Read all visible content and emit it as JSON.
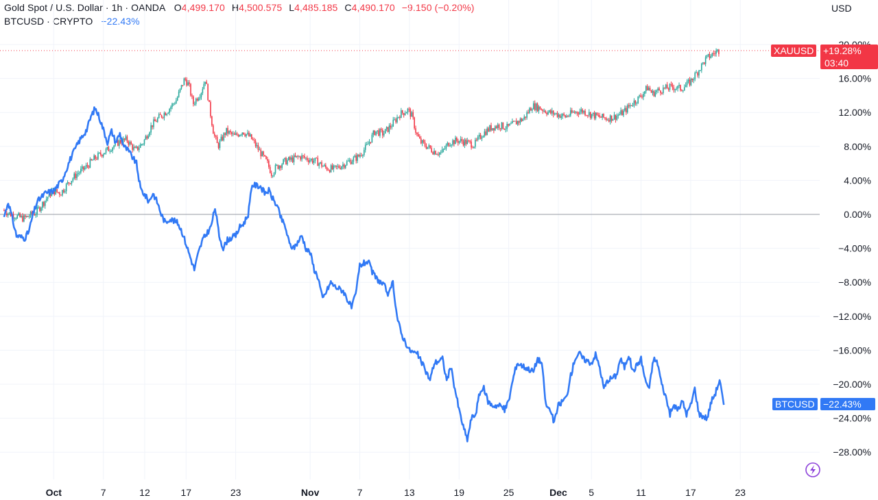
{
  "legend": {
    "gold_title": "Gold Spot / U.S. Dollar · 1h · OANDA",
    "open_key": "O",
    "open": "4,499.170",
    "high_key": "H",
    "high": "4,500.575",
    "low_key": "L",
    "low": "4,485.185",
    "close_key": "C",
    "close": "4,490.170",
    "change": "−9.150 (−0.20%)",
    "btc_title": "BTCUSD · CRYPTO",
    "btc_change": "−22.43%"
  },
  "currency": "USD",
  "tags": {
    "xau_symbol": "XAUUSD",
    "xau_value": "+19.28%",
    "xau_countdown": "03:40",
    "btc_symbol": "BTCUSD",
    "btc_value": "−22.43%"
  },
  "colors": {
    "up": "#26a69a",
    "down": "#f23645",
    "btc_line": "#3179f5",
    "zero_line": "#9598a1",
    "grid": "#f0f3fa"
  },
  "icons": {
    "bottom_right": "lightning-icon"
  },
  "chart_data": {
    "type": "line",
    "ylabel": "",
    "xlabel": "",
    "y_unit": "percent change",
    "ylim": [
      -31,
      21
    ],
    "y_ticks": [
      20,
      16,
      12,
      8,
      4,
      0,
      -4,
      -8,
      -12,
      -16,
      -20,
      -24,
      -28
    ],
    "y_tick_labels": [
      "20.00%",
      "16.00%",
      "12.00%",
      "8.00%",
      "4.00%",
      "0.00%",
      "−4.00%",
      "−8.00%",
      "−12.00%",
      "−16.00%",
      "−20.00%",
      "−24.00%",
      "−28.00%"
    ],
    "x_unit": "day index from 0 = Sep 26",
    "x_ticks": [
      {
        "label": "Oct",
        "day": 5,
        "bold": true
      },
      {
        "label": "7",
        "day": 11
      },
      {
        "label": "12",
        "day": 16
      },
      {
        "label": "17",
        "day": 21
      },
      {
        "label": "23",
        "day": 27
      },
      {
        "label": "Nov",
        "day": 36,
        "bold": true
      },
      {
        "label": "7",
        "day": 42
      },
      {
        "label": "13",
        "day": 48
      },
      {
        "label": "19",
        "day": 54
      },
      {
        "label": "25",
        "day": 60
      },
      {
        "label": "Dec",
        "day": 66,
        "bold": true
      },
      {
        "label": "5",
        "day": 70
      },
      {
        "label": "11",
        "day": 76
      },
      {
        "label": "17",
        "day": 82
      },
      {
        "label": "23",
        "day": 88
      }
    ],
    "series": [
      {
        "name": "XAUUSD",
        "style": "candles",
        "points": [
          [
            -1,
            0.5
          ],
          [
            0,
            0
          ],
          [
            1.5,
            -0.5
          ],
          [
            3,
            0.2
          ],
          [
            4,
            1.5
          ],
          [
            5,
            2.8
          ],
          [
            6,
            2.5
          ],
          [
            7,
            3.8
          ],
          [
            8,
            4.8
          ],
          [
            9,
            5.5
          ],
          [
            10,
            6.5
          ],
          [
            11,
            7.2
          ],
          [
            12,
            7.8
          ],
          [
            13,
            8.5
          ],
          [
            14,
            8.8
          ],
          [
            15,
            7.5
          ],
          [
            16,
            8.5
          ],
          [
            17,
            10.5
          ],
          [
            18,
            11.5
          ],
          [
            19,
            12.3
          ],
          [
            20,
            13.5
          ],
          [
            21,
            16.0
          ],
          [
            21.5,
            15.2
          ],
          [
            22,
            13.0
          ],
          [
            23,
            14.5
          ],
          [
            23.5,
            16.0
          ],
          [
            24,
            12.5
          ],
          [
            24.5,
            9.5
          ],
          [
            25,
            8.0
          ],
          [
            26,
            9.8
          ],
          [
            27,
            9.2
          ],
          [
            28,
            9.8
          ],
          [
            29,
            9.0
          ],
          [
            30,
            7.5
          ],
          [
            31,
            6.0
          ],
          [
            31.5,
            4.8
          ],
          [
            32,
            5.5
          ],
          [
            33,
            6.2
          ],
          [
            34,
            6.5
          ],
          [
            35,
            6.8
          ],
          [
            36,
            6.5
          ],
          [
            37,
            6.2
          ],
          [
            38,
            5.5
          ],
          [
            39,
            5.3
          ],
          [
            40,
            5.8
          ],
          [
            41,
            6.3
          ],
          [
            42,
            6.8
          ],
          [
            43,
            8.0
          ],
          [
            44,
            9.8
          ],
          [
            45,
            9.5
          ],
          [
            46,
            10.5
          ],
          [
            47,
            11.8
          ],
          [
            48,
            12.3
          ],
          [
            48.5,
            11.5
          ],
          [
            49,
            9.5
          ],
          [
            49.5,
            8.5
          ],
          [
            50,
            8.2
          ],
          [
            51,
            7.5
          ],
          [
            52,
            7.2
          ],
          [
            53,
            8.5
          ],
          [
            54,
            8.7
          ],
          [
            55,
            8.5
          ],
          [
            56,
            8.2
          ],
          [
            57,
            9.5
          ],
          [
            58,
            10.2
          ],
          [
            59,
            10.5
          ],
          [
            60,
            10.2
          ],
          [
            61,
            10.8
          ],
          [
            62,
            11.3
          ],
          [
            63,
            12.8
          ],
          [
            64,
            12.5
          ],
          [
            65,
            12.0
          ],
          [
            66,
            11.8
          ],
          [
            67,
            11.5
          ],
          [
            68,
            12.0
          ],
          [
            69,
            12.2
          ],
          [
            70,
            11.8
          ],
          [
            71,
            11.5
          ],
          [
            72,
            11.3
          ],
          [
            73,
            11.5
          ],
          [
            74,
            12.0
          ],
          [
            75,
            13.0
          ],
          [
            76,
            13.8
          ],
          [
            77,
            15.0
          ],
          [
            77.5,
            14.2
          ],
          [
            78,
            14.5
          ],
          [
            79,
            14.8
          ],
          [
            80,
            15.0
          ],
          [
            81,
            14.8
          ],
          [
            82,
            15.5
          ],
          [
            83,
            16.8
          ],
          [
            84,
            18.3
          ],
          [
            85,
            19.0
          ],
          [
            85.5,
            19.28
          ]
        ]
      },
      {
        "name": "BTCUSD",
        "style": "line",
        "points": [
          [
            -1,
            -0.3
          ],
          [
            -0.5,
            1.5
          ],
          [
            0,
            -0.5
          ],
          [
            0.5,
            -2.5
          ],
          [
            1.5,
            -2.8
          ],
          [
            2,
            -2.0
          ],
          [
            2.5,
            0
          ],
          [
            3,
            1.5
          ],
          [
            4,
            2.5
          ],
          [
            5,
            2.8
          ],
          [
            6,
            4.0
          ],
          [
            7,
            6.5
          ],
          [
            8,
            8.5
          ],
          [
            9,
            10.0
          ],
          [
            9.5,
            11.5
          ],
          [
            10,
            12.5
          ],
          [
            10.5,
            11.5
          ],
          [
            11,
            10.0
          ],
          [
            11.5,
            8.5
          ],
          [
            12,
            9.8
          ],
          [
            12.5,
            8.5
          ],
          [
            13,
            9.5
          ],
          [
            13.5,
            8.0
          ],
          [
            14,
            7.5
          ],
          [
            15,
            6.0
          ],
          [
            15.5,
            3.0
          ],
          [
            16,
            2.3
          ],
          [
            16.5,
            1.5
          ],
          [
            17,
            2.5
          ],
          [
            17.5,
            1.5
          ],
          [
            18,
            0
          ],
          [
            18.5,
            -1.0
          ],
          [
            19,
            -0.5
          ],
          [
            20,
            -1.0
          ],
          [
            20.5,
            -2.0
          ],
          [
            21,
            -3.5
          ],
          [
            21.5,
            -5.0
          ],
          [
            22,
            -6.5
          ],
          [
            22.5,
            -4.5
          ],
          [
            23,
            -3.0
          ],
          [
            24,
            -1.5
          ],
          [
            24.5,
            0.8
          ],
          [
            25,
            -2.5
          ],
          [
            25.5,
            -4.0
          ],
          [
            26,
            -3.0
          ],
          [
            27,
            -2.5
          ],
          [
            27.5,
            -1.5
          ],
          [
            28,
            -1.0
          ],
          [
            28.5,
            0
          ],
          [
            29,
            3.5
          ],
          [
            30,
            3.3
          ],
          [
            30.5,
            2.5
          ],
          [
            31,
            2.8
          ],
          [
            31.5,
            1.8
          ],
          [
            32,
            1.0
          ],
          [
            32.5,
            -0.5
          ],
          [
            33,
            -1.5
          ],
          [
            33.5,
            -3.5
          ],
          [
            34,
            -4.0
          ],
          [
            35,
            -2.5
          ],
          [
            35.5,
            -4.0
          ],
          [
            36,
            -4.5
          ],
          [
            36.5,
            -6.5
          ],
          [
            37,
            -7.5
          ],
          [
            37.5,
            -10.0
          ],
          [
            38,
            -9.0
          ],
          [
            38.5,
            -8.0
          ],
          [
            39,
            -8.5
          ],
          [
            40,
            -9.0
          ],
          [
            40.5,
            -10.0
          ],
          [
            41,
            -11.0
          ],
          [
            41.5,
            -9.5
          ],
          [
            42,
            -6.0
          ],
          [
            43,
            -5.5
          ],
          [
            43.5,
            -6.8
          ],
          [
            44,
            -7.5
          ],
          [
            44.5,
            -8.0
          ],
          [
            45,
            -8.5
          ],
          [
            45.5,
            -9.5
          ],
          [
            46,
            -8.0
          ],
          [
            46.5,
            -12.0
          ],
          [
            47,
            -14.0
          ],
          [
            47.5,
            -15.0
          ],
          [
            48,
            -16.0
          ],
          [
            49,
            -16.5
          ],
          [
            50,
            -18.5
          ],
          [
            50.5,
            -19.5
          ],
          [
            51,
            -17.5
          ],
          [
            52,
            -17.0
          ],
          [
            52.5,
            -19.5
          ],
          [
            53,
            -18.0
          ],
          [
            53.5,
            -20.5
          ],
          [
            54,
            -23.0
          ],
          [
            54.5,
            -25.0
          ],
          [
            55,
            -26.5
          ],
          [
            55.5,
            -24.0
          ],
          [
            56,
            -23.5
          ],
          [
            56.5,
            -21.0
          ],
          [
            57,
            -20.5
          ],
          [
            57.5,
            -22.0
          ],
          [
            58,
            -22.5
          ],
          [
            59,
            -22.5
          ],
          [
            59.5,
            -23.0
          ],
          [
            60,
            -22.0
          ],
          [
            60.5,
            -19.5
          ],
          [
            61,
            -17.5
          ],
          [
            62,
            -18.0
          ],
          [
            63,
            -18.5
          ],
          [
            63.5,
            -17.0
          ],
          [
            64,
            -17.5
          ],
          [
            64.5,
            -22.5
          ],
          [
            65,
            -23.0
          ],
          [
            65.5,
            -24.5
          ],
          [
            66,
            -22.5
          ],
          [
            66.5,
            -22.0
          ],
          [
            67,
            -21.5
          ],
          [
            67.5,
            -19.0
          ],
          [
            68,
            -17.0
          ],
          [
            68.5,
            -16.3
          ],
          [
            69,
            -17.0
          ],
          [
            70,
            -17.5
          ],
          [
            70.5,
            -16.5
          ],
          [
            71,
            -18.0
          ],
          [
            71.5,
            -20.5
          ],
          [
            72,
            -19.5
          ],
          [
            73,
            -19.0
          ],
          [
            73.5,
            -17.0
          ],
          [
            74,
            -18.0
          ],
          [
            74.5,
            -16.5
          ],
          [
            75,
            -18.5
          ],
          [
            76,
            -17.0
          ],
          [
            76.5,
            -19.5
          ],
          [
            77,
            -20.5
          ],
          [
            77.5,
            -17.0
          ],
          [
            78,
            -17.5
          ],
          [
            78.5,
            -20.0
          ],
          [
            79,
            -21.5
          ],
          [
            79.5,
            -23.5
          ],
          [
            80,
            -22.5
          ],
          [
            80.5,
            -23.0
          ],
          [
            81,
            -22.0
          ],
          [
            81.5,
            -23.5
          ],
          [
            82,
            -22.5
          ],
          [
            82.5,
            -20.5
          ],
          [
            83,
            -23.5
          ],
          [
            84,
            -24.0
          ],
          [
            84.5,
            -22.0
          ],
          [
            85,
            -21.0
          ],
          [
            85.5,
            -19.5
          ],
          [
            86,
            -22.43
          ]
        ]
      }
    ]
  }
}
